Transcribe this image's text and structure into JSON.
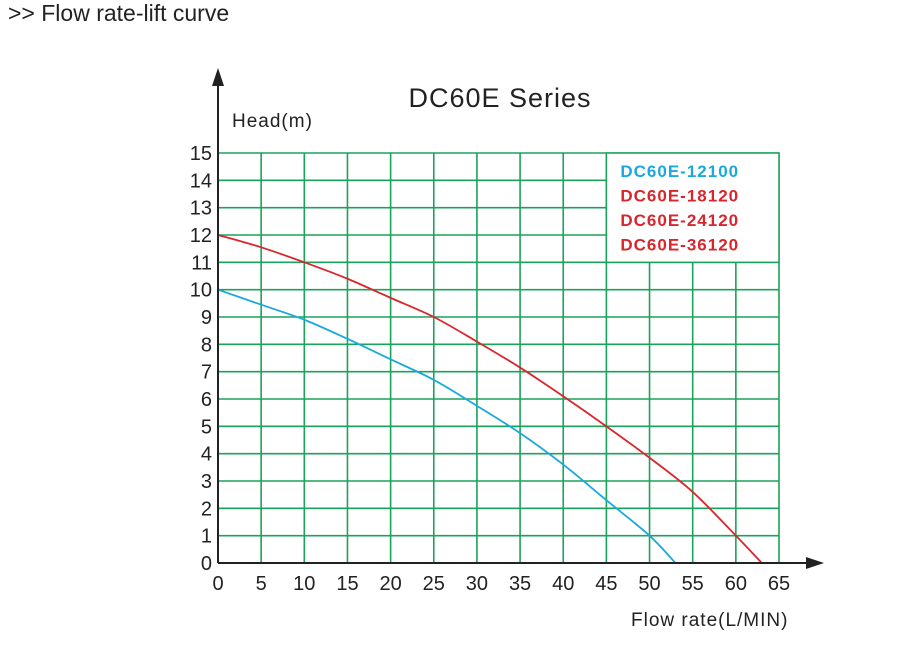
{
  "header": ">> Flow rate-lift curve",
  "chart_data": {
    "type": "line",
    "title": "DC60E Series",
    "xlabel": "Flow rate(L/MIN)",
    "ylabel": "Head(m)",
    "xlim": [
      0,
      65
    ],
    "ylim": [
      0,
      15
    ],
    "xticks": [
      "0",
      "5",
      "10",
      "15",
      "20",
      "25",
      "30",
      "35",
      "40",
      "45",
      "50",
      "55",
      "60",
      "65"
    ],
    "yticks": [
      "0",
      "1",
      "2",
      "3",
      "4",
      "5",
      "6",
      "7",
      "8",
      "9",
      "10",
      "11",
      "12",
      "13",
      "14",
      "15"
    ],
    "grid": true,
    "grid_color": "#1aa35a",
    "legend_position": "top-right",
    "legend": [
      {
        "label": "DC60E-12100",
        "color": "#1aa9dc"
      },
      {
        "label": "DC60E-18120",
        "color": "#d9262c"
      },
      {
        "label": "DC60E-24120",
        "color": "#d9262c"
      },
      {
        "label": "DC60E-36120",
        "color": "#d9262c"
      }
    ],
    "series": [
      {
        "name": "DC60E-12100",
        "color": "#1aa9dc",
        "x": [
          0,
          5,
          10,
          15,
          20,
          25,
          30,
          35,
          40,
          45,
          50,
          53
        ],
        "y": [
          10,
          9.45,
          8.9,
          8.2,
          7.45,
          6.7,
          5.75,
          4.75,
          3.6,
          2.3,
          1,
          0
        ]
      },
      {
        "name": "DC60E-18120 / 24120 / 36120",
        "color": "#d9262c",
        "x": [
          0,
          5,
          10,
          15,
          20,
          25,
          30,
          35,
          40,
          45,
          50,
          55,
          60,
          63
        ],
        "y": [
          12,
          11.55,
          11,
          10.4,
          9.7,
          9,
          8.1,
          7.15,
          6.1,
          5,
          3.85,
          2.6,
          1,
          0
        ]
      }
    ]
  }
}
